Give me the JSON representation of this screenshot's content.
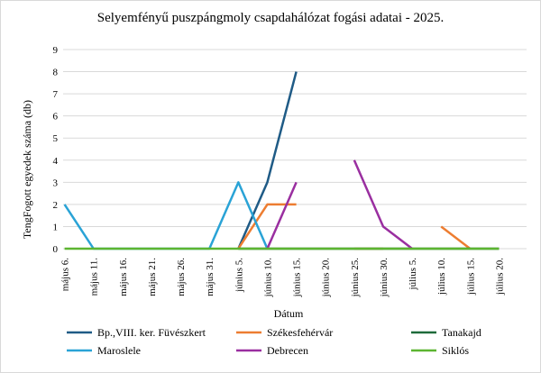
{
  "chart_data": {
    "type": "line",
    "title": "Selyemfényű puszpángmoly csapdahálózat fogási adatai - 2025.",
    "xlabel": "Dátum",
    "ylabel": "TengFogott egyedek száma (db)",
    "ylim": [
      0,
      9
    ],
    "yticks": [
      0,
      1,
      2,
      3,
      4,
      5,
      6,
      7,
      8,
      9
    ],
    "grid": "horizontal",
    "legend": "bottom",
    "categories": [
      "május 6.",
      "május 11.",
      "május 16.",
      "május 21.",
      "május 26.",
      "május 31.",
      "június 5.",
      "június 10.",
      "június 15.",
      "június 20.",
      "június 25.",
      "június 30.",
      "július 5.",
      "július 10.",
      "július 15.",
      "július 20."
    ],
    "series": [
      {
        "name": "Bp.,VIII. ker. Füvészkert",
        "color": "#1f5b86",
        "values": [
          null,
          null,
          null,
          null,
          null,
          null,
          0,
          3,
          8,
          null,
          0,
          null,
          null,
          null,
          null,
          null
        ]
      },
      {
        "name": "Székesfehérvár",
        "color": "#ed7d31",
        "values": [
          null,
          null,
          null,
          null,
          null,
          null,
          0,
          2,
          2,
          null,
          0,
          0,
          null,
          1,
          0,
          null
        ]
      },
      {
        "name": "Tanakajd",
        "color": "#1e6b3a",
        "values": [
          null,
          null,
          null,
          null,
          null,
          null,
          0,
          0,
          0,
          0,
          0,
          0,
          0,
          0,
          0,
          0
        ]
      },
      {
        "name": "Maroslele",
        "color": "#2aa3d6",
        "values": [
          2,
          0,
          0,
          0,
          0,
          0,
          3,
          0,
          null,
          null,
          null,
          null,
          null,
          null,
          null,
          null
        ]
      },
      {
        "name": "Debrecen",
        "color": "#9a2fa0",
        "values": [
          null,
          null,
          null,
          null,
          null,
          null,
          null,
          0,
          3,
          null,
          4,
          1,
          0,
          null,
          null,
          null
        ]
      },
      {
        "name": "Siklós",
        "color": "#5cb531",
        "values": [
          0,
          0,
          0,
          0,
          0,
          0,
          0,
          0,
          0,
          0,
          0,
          0,
          0,
          0,
          0,
          0
        ]
      }
    ]
  }
}
